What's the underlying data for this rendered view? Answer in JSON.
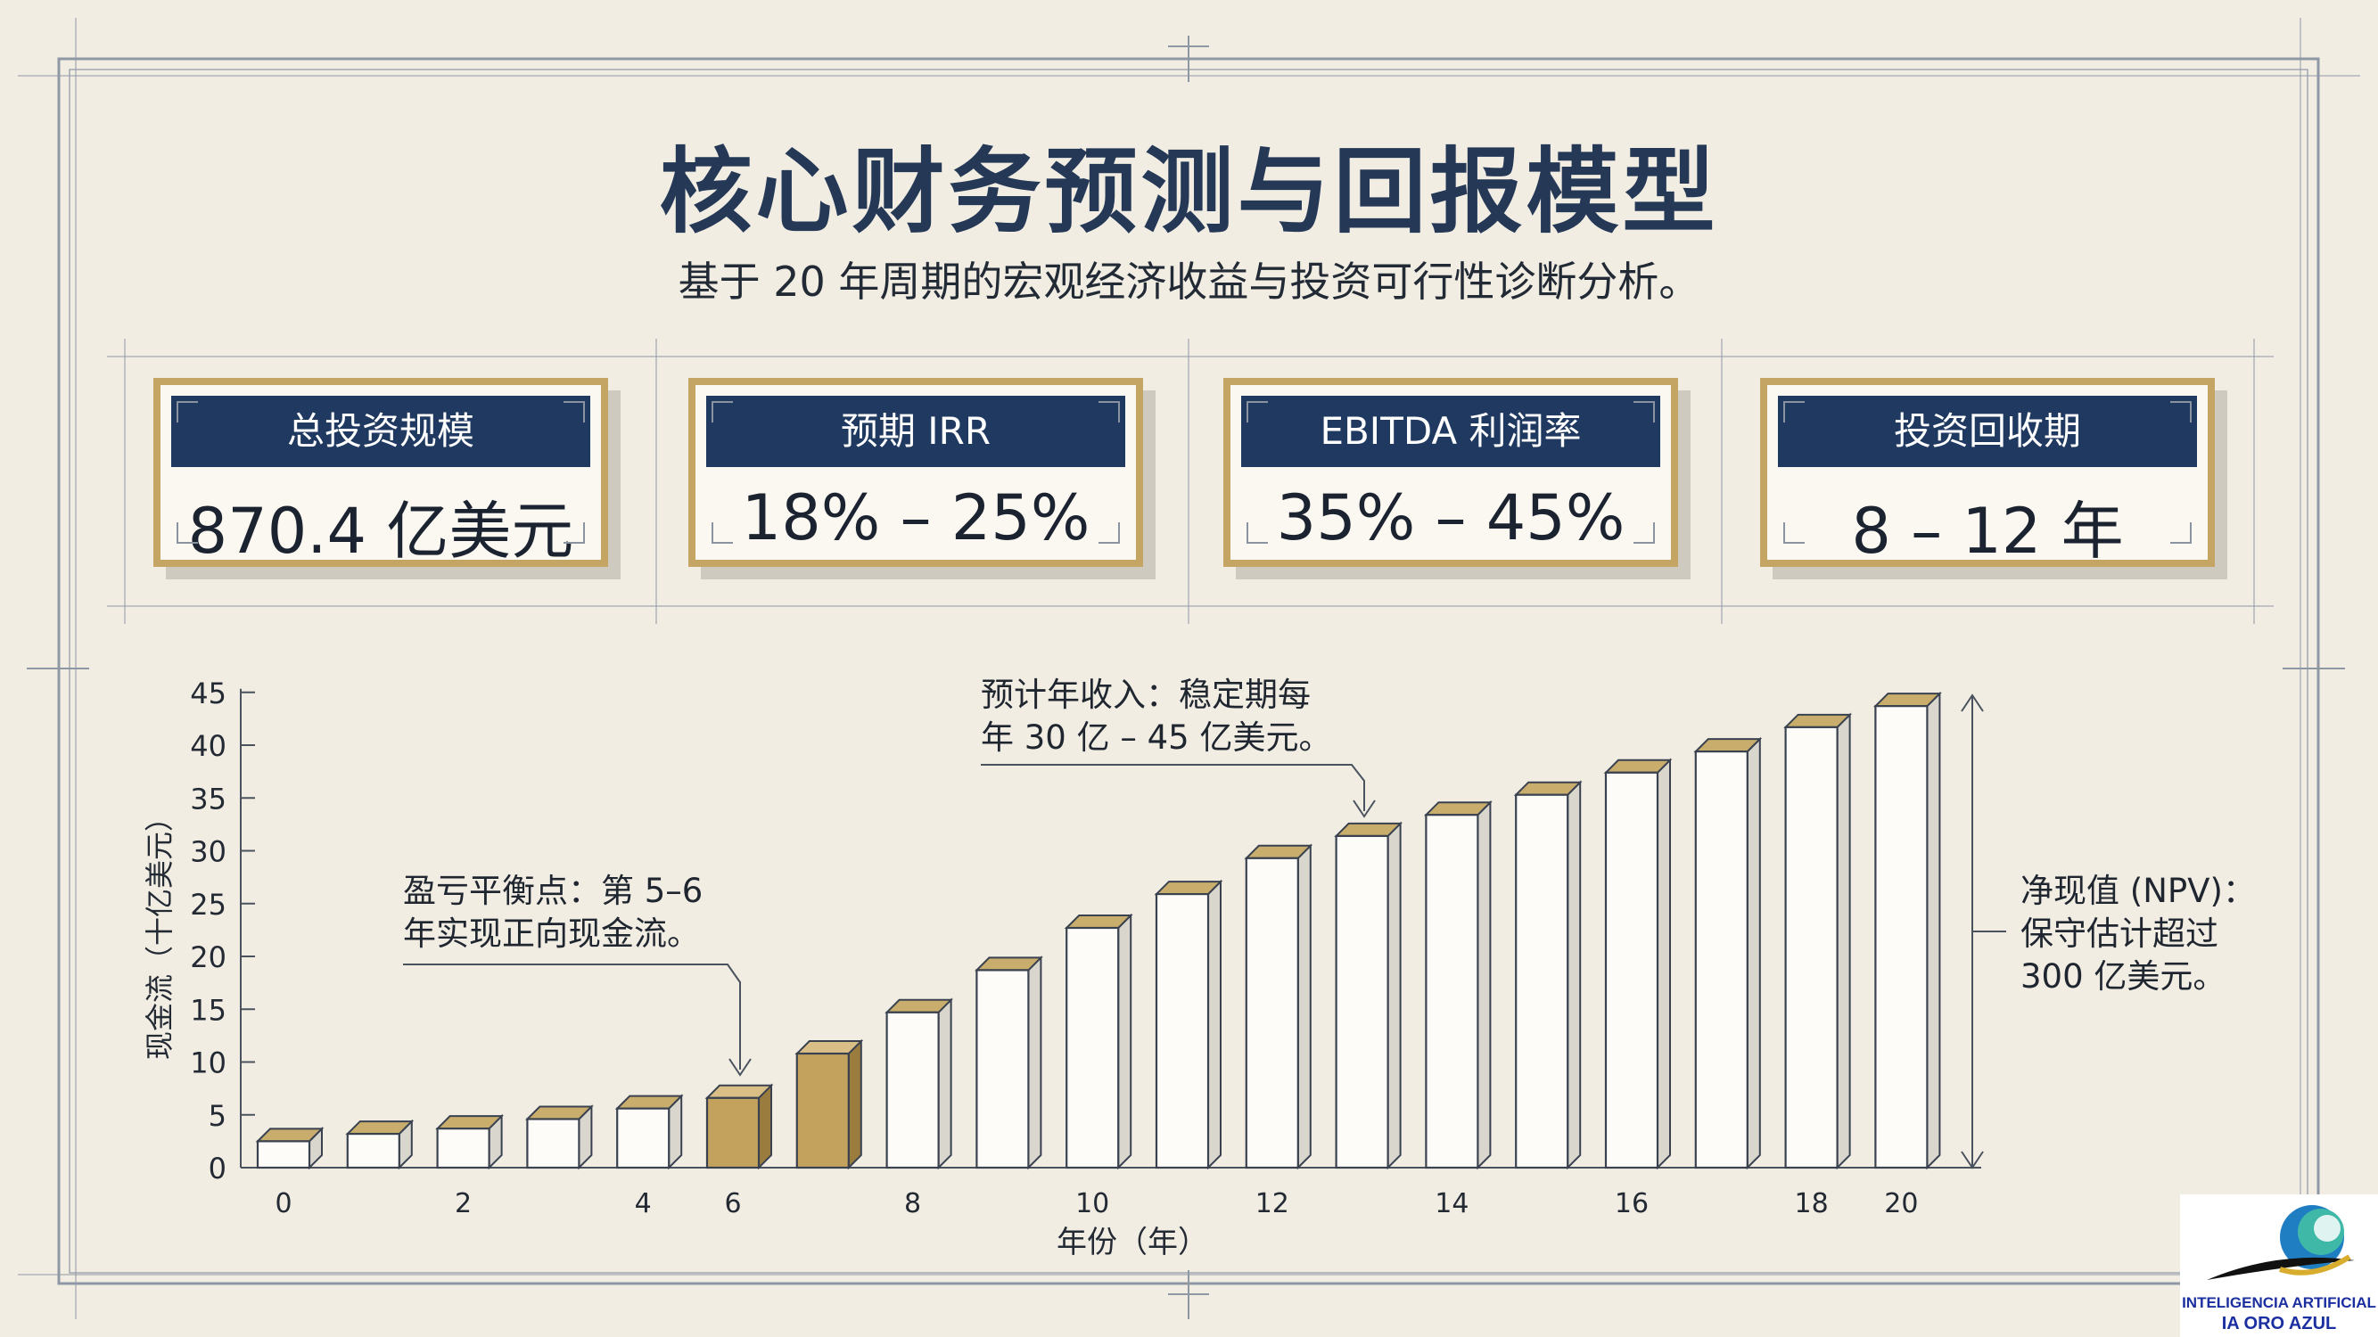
{
  "header": {
    "title": "核心财务预测与回报模型",
    "subtitle": "基于 20 年周期的宏观经济收益与投资可行性诊断分析。"
  },
  "kpis": [
    {
      "label": "总投资规模",
      "value": "870.4 亿美元"
    },
    {
      "label": "预期 IRR",
      "value": "18% – 25%"
    },
    {
      "label": "EBITDA 利润率",
      "value": "35% – 45%"
    },
    {
      "label": "投资回收期",
      "value": "8 – 12 年"
    }
  ],
  "annotations": {
    "breakeven": "盈亏平衡点：第 5–6\n年实现正向现金流。",
    "revenue": "预计年收入：稳定期每\n年 30 亿 – 45 亿美元。",
    "npv": "净现值 (NPV)：\n保守估计超过\n300 亿美元。"
  },
  "logo": {
    "line1": "INTELIGENCIA ARTIFICIAL",
    "line2": "IA ORO AZUL"
  },
  "colors": {
    "navy": "#1f3960",
    "gold": "#c5a564",
    "background": "#f1ede3"
  },
  "chart_data": {
    "type": "bar",
    "xlabel": "年份（年）",
    "ylabel": "现金流（十亿美元）",
    "ylim": [
      0,
      45
    ],
    "yticks": [
      0,
      5,
      10,
      15,
      20,
      25,
      30,
      35,
      40,
      45
    ],
    "x": [
      0,
      1,
      2,
      3,
      4,
      5,
      6,
      7,
      8,
      9,
      10,
      11,
      12,
      13,
      14,
      15,
      16,
      17,
      18,
      19
    ],
    "xtick_labels": [
      "0",
      "",
      "2",
      "",
      "4",
      "6",
      "",
      "8",
      "",
      "10",
      "",
      "12",
      "",
      "14",
      "",
      "16",
      "",
      "18",
      "20",
      ""
    ],
    "values": [
      2.5,
      3.2,
      3.7,
      4.6,
      5.6,
      6.6,
      10.8,
      14.7,
      18.7,
      22.7,
      25.9,
      29.3,
      31.4,
      33.4,
      35.3,
      37.4,
      39.4,
      41.7,
      43.7,
      null
    ],
    "highlight_indices": [
      5,
      6
    ],
    "grid": false
  }
}
